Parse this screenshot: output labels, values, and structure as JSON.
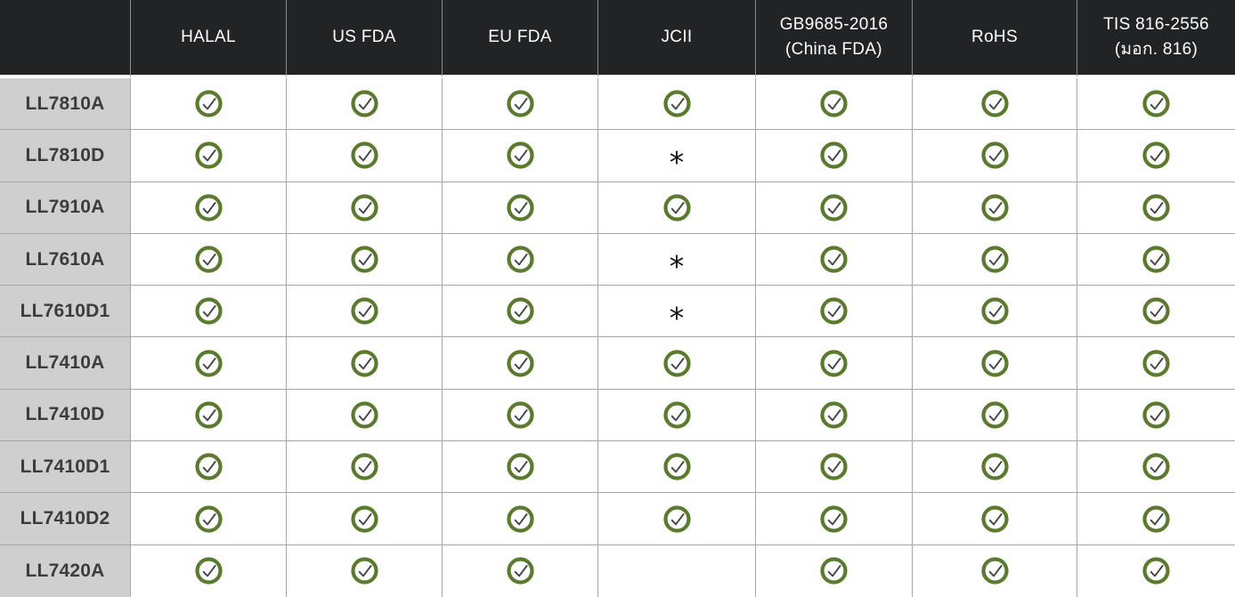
{
  "colors": {
    "header_bg": "#222324",
    "label_bg": "#cfcfcf",
    "cell_bg": "#ffffff",
    "border": "#a6a6a6",
    "check_ring": "#5a7a2d",
    "check_mark": "#44474a"
  },
  "table": {
    "corner_label": "",
    "star_symbol": "*",
    "columns": [
      {
        "id": "halal",
        "label_lines": [
          "HALAL"
        ]
      },
      {
        "id": "us-fda",
        "label_lines": [
          "US FDA"
        ]
      },
      {
        "id": "eu-fda",
        "label_lines": [
          "EU FDA"
        ]
      },
      {
        "id": "jcii",
        "label_lines": [
          "JCII"
        ]
      },
      {
        "id": "gb9685-2016-china-fda",
        "label_lines": [
          "GB9685-2016",
          "(China FDA)"
        ]
      },
      {
        "id": "rohs",
        "label_lines": [
          "RoHS"
        ]
      },
      {
        "id": "tis-816-2556",
        "label_lines": [
          "TIS 816-2556",
          "(มอก. 816)"
        ]
      }
    ],
    "rows": [
      {
        "model": "LL7810A",
        "cells": [
          "check",
          "check",
          "check",
          "check",
          "check",
          "check",
          "check"
        ]
      },
      {
        "model": "LL7810D",
        "cells": [
          "check",
          "check",
          "check",
          "star",
          "check",
          "check",
          "check"
        ]
      },
      {
        "model": "LL7910A",
        "cells": [
          "check",
          "check",
          "check",
          "check",
          "check",
          "check",
          "check"
        ]
      },
      {
        "model": "LL7610A",
        "cells": [
          "check",
          "check",
          "check",
          "star",
          "check",
          "check",
          "check"
        ]
      },
      {
        "model": "LL7610D1",
        "cells": [
          "check",
          "check",
          "check",
          "star",
          "check",
          "check",
          "check"
        ]
      },
      {
        "model": "LL7410A",
        "cells": [
          "check",
          "check",
          "check",
          "check",
          "check",
          "check",
          "check"
        ]
      },
      {
        "model": "LL7410D",
        "cells": [
          "check",
          "check",
          "check",
          "check",
          "check",
          "check",
          "check"
        ]
      },
      {
        "model": "LL7410D1",
        "cells": [
          "check",
          "check",
          "check",
          "check",
          "check",
          "check",
          "check"
        ]
      },
      {
        "model": "LL7410D2",
        "cells": [
          "check",
          "check",
          "check",
          "check",
          "check",
          "check",
          "check"
        ]
      },
      {
        "model": "LL7420A",
        "cells": [
          "check",
          "check",
          "check",
          "blank",
          "check",
          "check",
          "check"
        ]
      }
    ]
  }
}
